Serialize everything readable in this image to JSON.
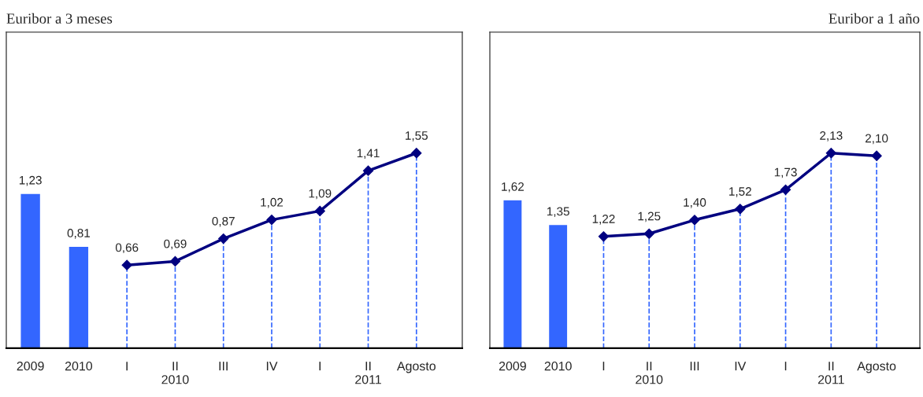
{
  "chart_data": [
    {
      "type": "bar",
      "grid": "x",
      "title": "Euribor a 3 meses",
      "categories": [
        "2009",
        "2010",
        "I",
        "II\n2010",
        "III",
        "IV",
        "I",
        "II\n2011",
        "Agosto"
      ],
      "tick_labels": "x",
      "series": [
        {
          "color": "#3366ff",
          "values": [
            1.23,
            0.81,
            null,
            null,
            null,
            null,
            null,
            null,
            null
          ],
          "value_labels": [
            "1,23",
            "0,81",
            null,
            null,
            null,
            null,
            null,
            null,
            null
          ]
        },
        {
          "type": "line",
          "color": "#000080",
          "marker": "diamond",
          "line_style": "solid",
          "values": [
            null,
            null,
            0.66,
            0.69,
            0.87,
            1.02,
            1.09,
            1.41,
            1.55
          ],
          "value_labels": [
            null,
            null,
            "0,66",
            "0,69",
            "0,87",
            "1,02",
            "1,09",
            "1,41",
            "1,55"
          ]
        }
      ]
    },
    {
      "type": "bar",
      "grid": "x",
      "title": "Euribor a 1 año",
      "categories": [
        "2009",
        "2010",
        "I",
        "II\n2010",
        "III",
        "IV",
        "I",
        "II\n2011",
        "Agosto"
      ],
      "tick_labels": "x",
      "series": [
        {
          "color": "#3366ff",
          "values": [
            1.62,
            1.35,
            null,
            null,
            null,
            null,
            null,
            null,
            null
          ],
          "value_labels": [
            "1,62",
            "1,35",
            null,
            null,
            null,
            null,
            null,
            null,
            null
          ]
        },
        {
          "type": "line",
          "color": "#000080",
          "marker": "diamond",
          "line_style": "solid",
          "values": [
            null,
            null,
            1.22,
            1.25,
            1.4,
            1.52,
            1.73,
            2.13,
            2.1
          ],
          "value_labels": [
            null,
            null,
            "1,22",
            "1,25",
            "1,40",
            "1,52",
            "1,73",
            "2,13",
            "2,10"
          ]
        }
      ]
    }
  ]
}
